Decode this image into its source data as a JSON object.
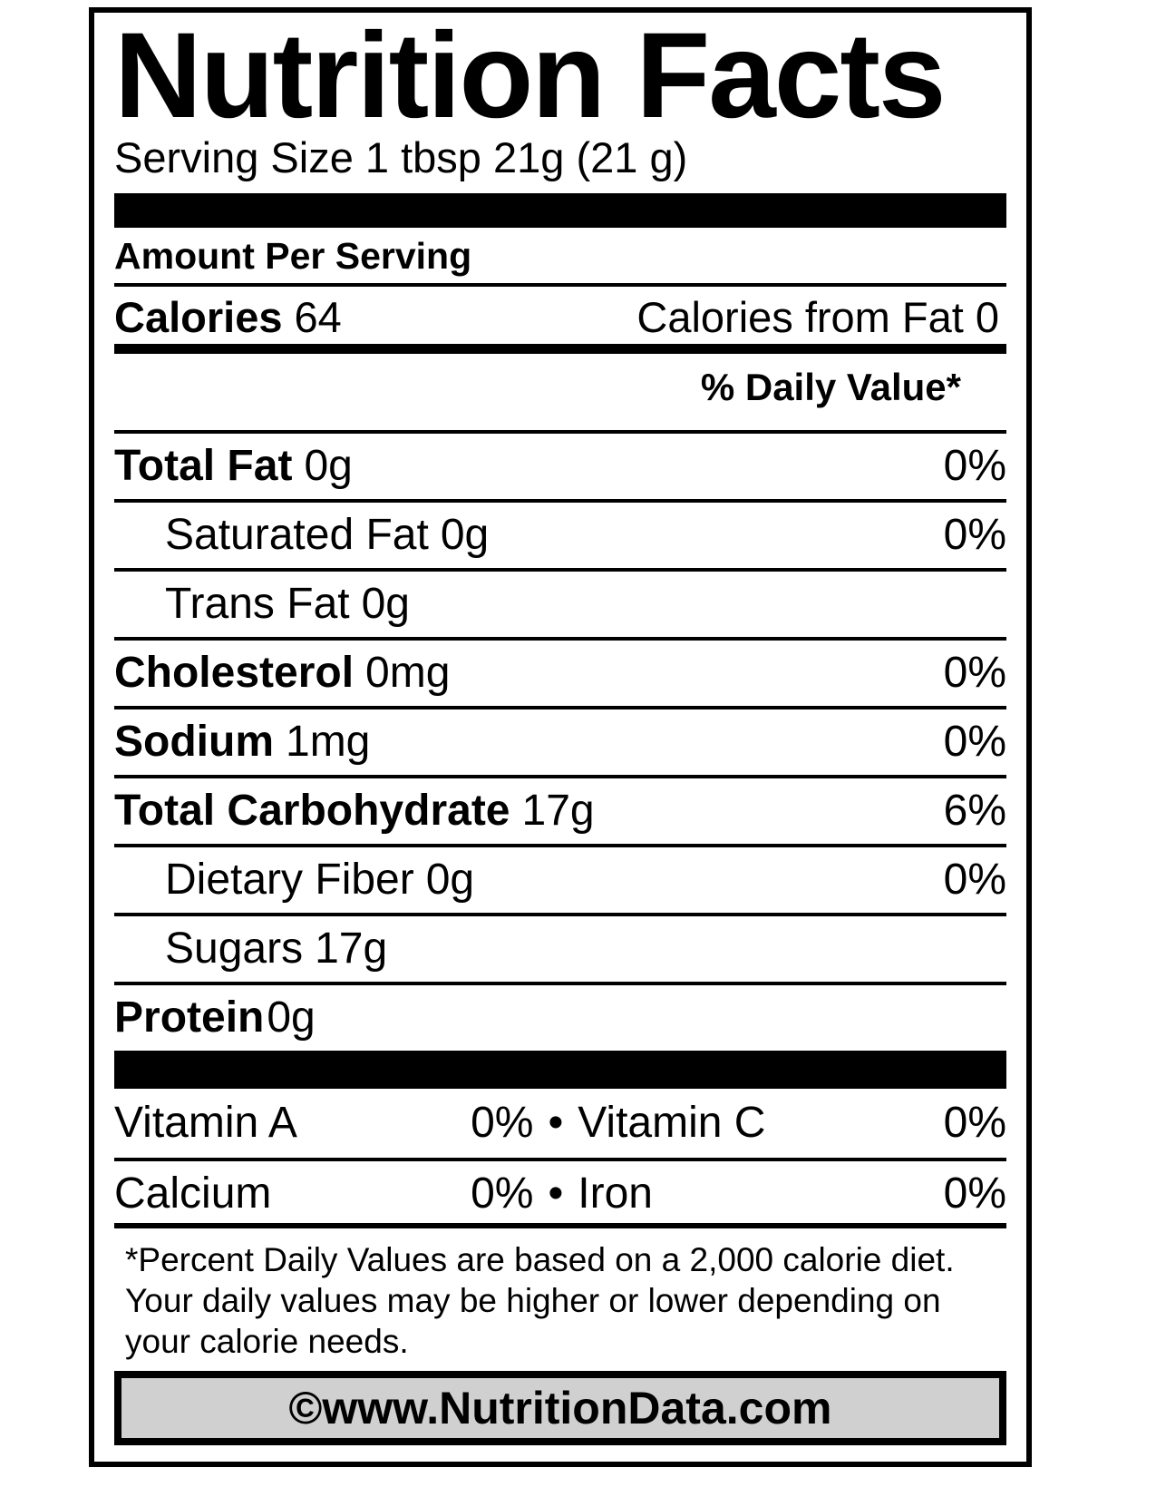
{
  "label": {
    "title": "Nutrition Facts",
    "serving_size": "Serving Size 1 tbsp 21g (21 g)",
    "amount_per_serving": "Amount Per Serving",
    "calories": {
      "label": "Calories",
      "value": "64",
      "from_fat_label": "Calories from Fat",
      "from_fat_value": "0"
    },
    "daily_value_header": "% Daily Value*",
    "nutrients": [
      {
        "label": "Total Fat",
        "amount": "0g",
        "dv": "0%"
      },
      {
        "label": "Saturated Fat",
        "amount": "0g",
        "dv": "0%"
      },
      {
        "label": "Trans Fat",
        "amount": "0g",
        "dv": ""
      },
      {
        "label": "Cholesterol",
        "amount": "0mg",
        "dv": "0%"
      },
      {
        "label": "Sodium",
        "amount": "1mg",
        "dv": "0%"
      },
      {
        "label": "Total Carbohydrate",
        "amount": "17g",
        "dv": "6%"
      },
      {
        "label": "Dietary Fiber",
        "amount": "0g",
        "dv": "0%"
      },
      {
        "label": "Sugars",
        "amount": "17g",
        "dv": ""
      },
      {
        "label": "Protein",
        "amount": "0g",
        "dv": ""
      }
    ],
    "bullet": "•",
    "micronutrients": [
      {
        "left_label": "Vitamin A",
        "left_value": "0%",
        "right_label": "Vitamin C",
        "right_value": "0%"
      },
      {
        "left_label": "Calcium",
        "left_value": "0%",
        "right_label": "Iron",
        "right_value": "0%"
      }
    ],
    "footnote": "*Percent Daily Values are based on a 2,000 calorie diet. Your daily values may be higher or lower depending on your calorie needs.",
    "footer": "©www.NutritionData.com",
    "colors": {
      "text": "#000000",
      "background": "#ffffff",
      "footer_bg": "#d0d0d0"
    }
  }
}
